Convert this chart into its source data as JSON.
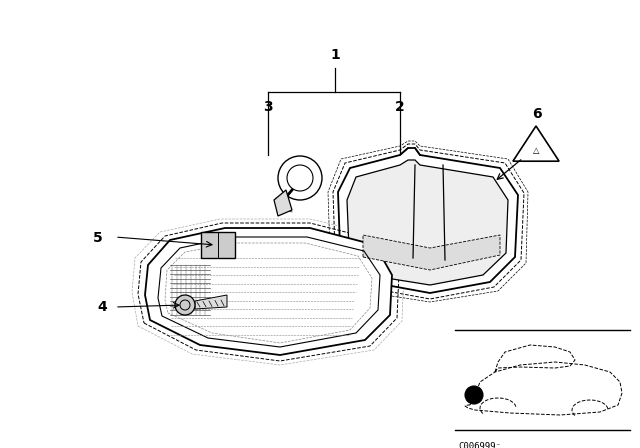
{
  "bg_color": "#ffffff",
  "fig_width": 6.4,
  "fig_height": 4.48,
  "dpi": 100,
  "label_fontsize": 10,
  "label_fontweight": "bold",
  "code_text": "C006999⁻",
  "line_color": "#000000"
}
